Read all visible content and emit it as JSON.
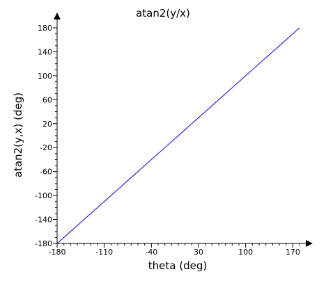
{
  "chart_data": {
    "type": "line",
    "title": "atan2(y/x)",
    "xlabel": "theta  (deg)",
    "ylabel": "atan2(y,x)  (deg)",
    "xlim": [
      -180,
      180
    ],
    "ylim": [
      -180,
      180
    ],
    "xticks": [
      -180,
      -110,
      -40,
      30,
      100,
      170
    ],
    "yticks": [
      -180,
      -140,
      -100,
      -60,
      -20,
      20,
      60,
      100,
      140,
      180
    ],
    "grid": false,
    "series": [
      {
        "color": "#0000cc",
        "x": [
          -180,
          180
        ],
        "y": [
          -180,
          180
        ]
      }
    ]
  }
}
